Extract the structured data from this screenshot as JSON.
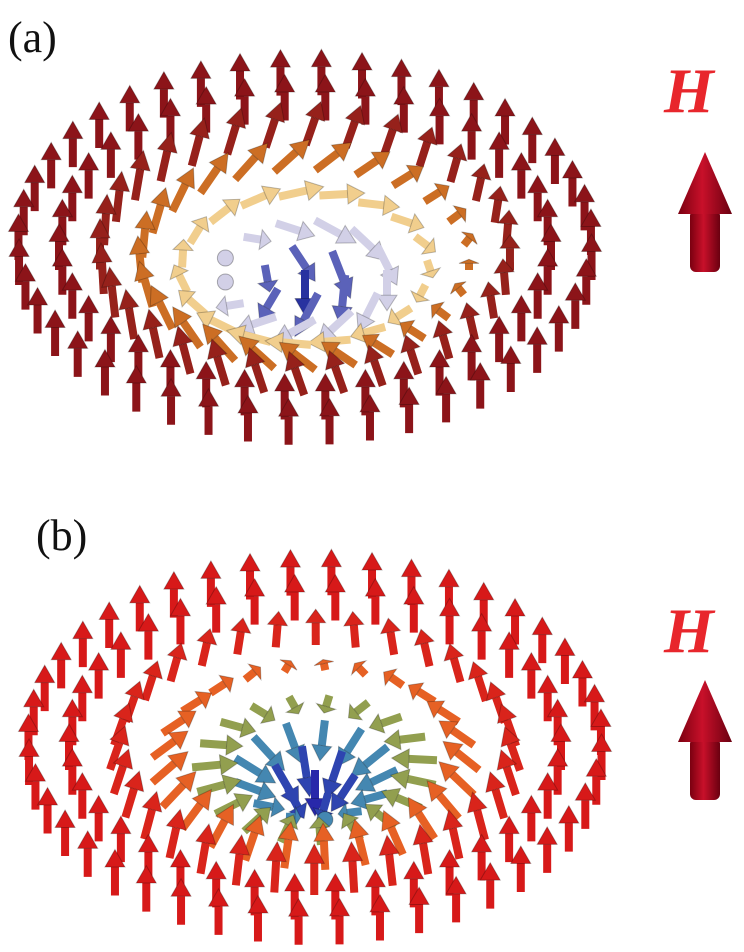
{
  "panels": [
    {
      "label": "(a)",
      "field_label": "H"
    },
    {
      "label": "(b)",
      "field_label": "H"
    }
  ]
}
